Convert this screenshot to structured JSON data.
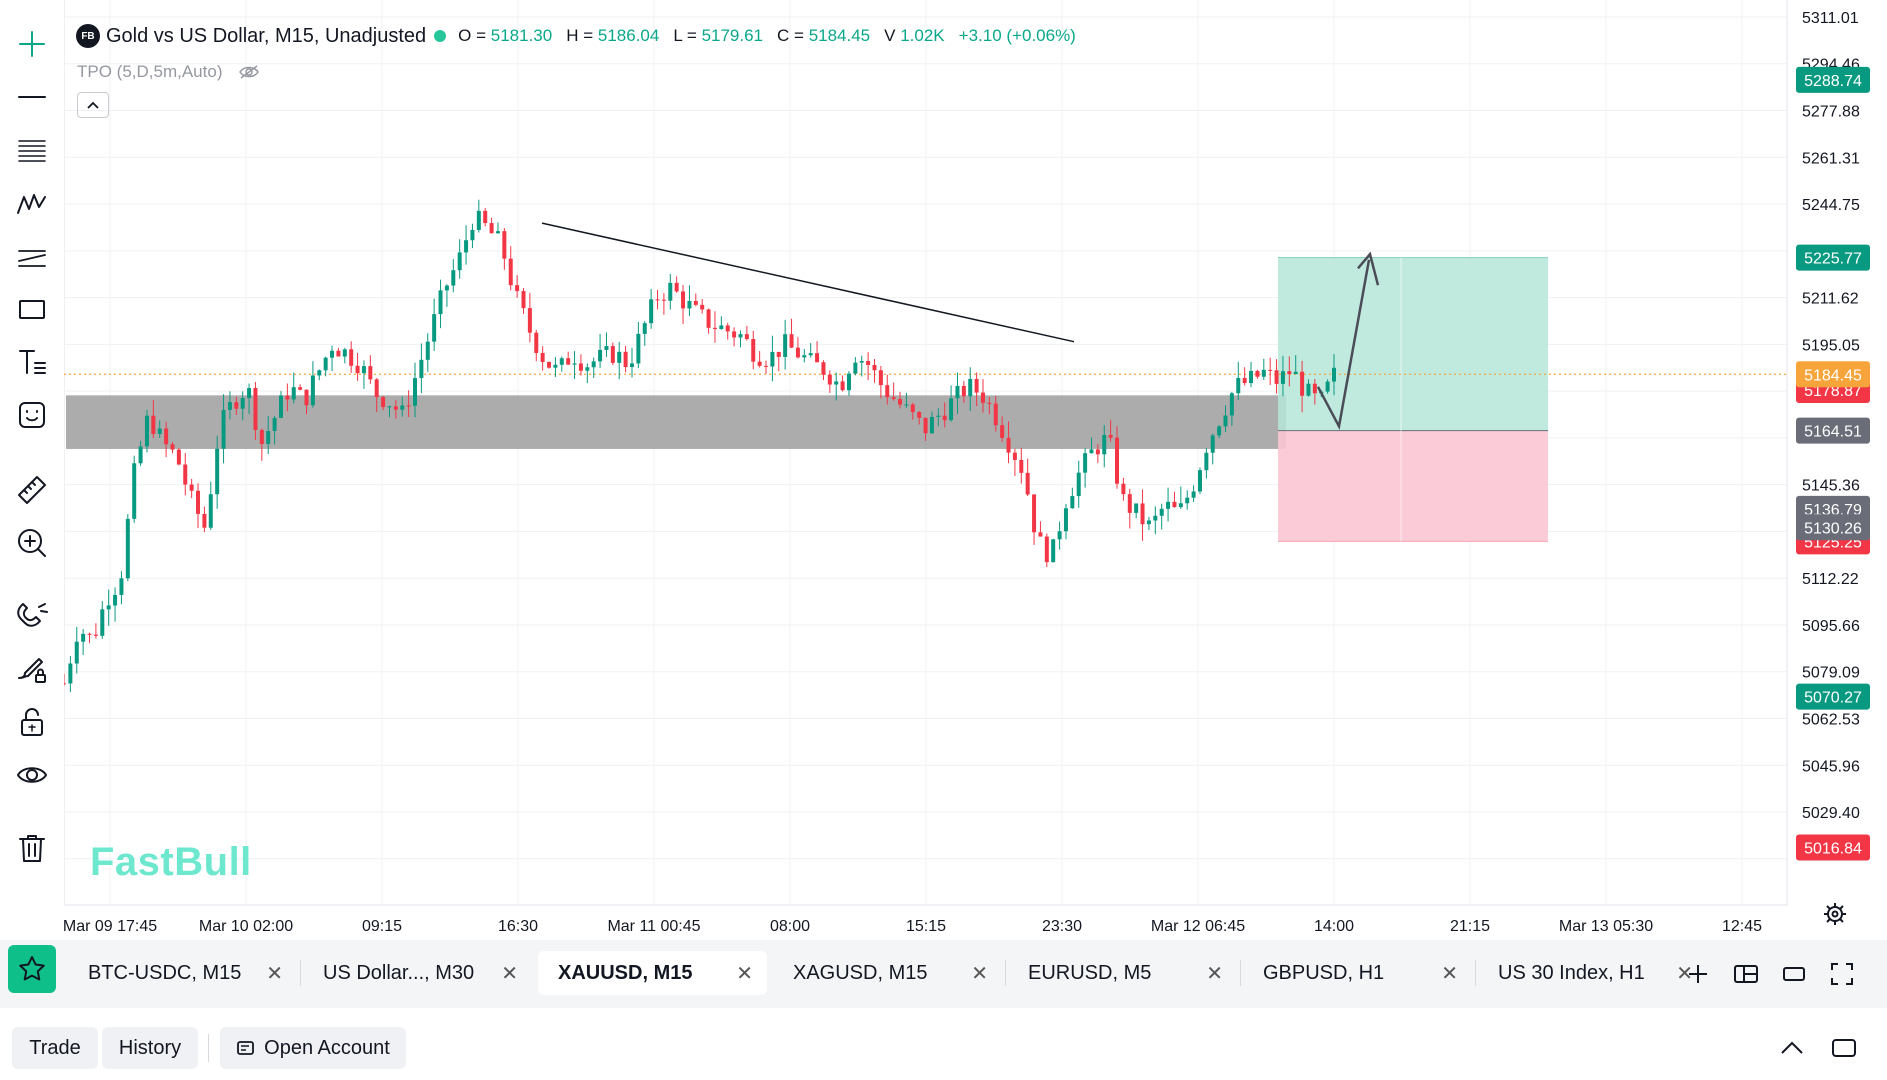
{
  "legend": {
    "logo_text": "FB",
    "title": "Gold vs US Dollar, M15, Unadjusted",
    "open_label": "O =",
    "open": "5181.30",
    "high_label": "H =",
    "high": "5186.04",
    "low_label": "L =",
    "low": "5179.61",
    "close_label": "C =",
    "close": "5184.45",
    "volume_label": "V",
    "volume": "1.02K",
    "change": "+3.10 (+0.06%)"
  },
  "indicator": {
    "label": "TPO (5,D,5m,Auto)"
  },
  "watermark": "FastBull",
  "toolbar": {
    "tools": [
      "crosshair-icon",
      "horizontal-line-icon",
      "fib-lines-icon",
      "pattern-icon",
      "channel-icon",
      "rectangle-icon",
      "text-icon",
      "emoji-icon",
      "ruler-icon",
      "zoom-in-icon",
      "magnet-icon",
      "brush-lock-icon",
      "lock-icon",
      "eye-icon",
      "trash-icon"
    ]
  },
  "price_axis": {
    "ticks": [
      "5311.01",
      "5294.46",
      "5277.88",
      "5261.31",
      "5244.75",
      "5211.62",
      "5195.05",
      "5145.36",
      "5112.22",
      "5095.66",
      "5079.09",
      "5062.53",
      "5045.96",
      "5029.40"
    ],
    "labels": [
      {
        "text": "5288.74",
        "color": "#089981"
      },
      {
        "text": "5225.77",
        "color": "#089981"
      },
      {
        "text": "5178.87",
        "color": "#f23645"
      },
      {
        "text": "5184.45",
        "color": "#f7a53b"
      },
      {
        "text": "5164.51",
        "color": "#6a6d78"
      },
      {
        "text": "5125.25",
        "color": "#f23645"
      },
      {
        "text": "5136.79",
        "color": "#6a6d78"
      },
      {
        "text": "5130.26",
        "color": "#6a6d78"
      },
      {
        "text": "5070.27",
        "color": "#089981"
      },
      {
        "text": "5016.84",
        "color": "#f23645"
      }
    ]
  },
  "time_axis": {
    "ticks": [
      "Mar 09 17:45",
      "Mar 10 02:00",
      "09:15",
      "16:30",
      "Mar 11 00:45",
      "08:00",
      "15:15",
      "23:30",
      "Mar 12 06:45",
      "14:00",
      "21:15",
      "Mar 13 05:30",
      "12:45"
    ]
  },
  "chart_data": {
    "type": "candlestick",
    "symbol": "XAUUSD",
    "timeframe": "M15",
    "ylim": [
      5005,
      5318
    ],
    "x_ticks": [
      "Mar 09 17:45",
      "Mar 10 02:00",
      "09:15",
      "16:30",
      "Mar 11 00:45",
      "08:00",
      "15:15",
      "23:30",
      "Mar 12 06:45",
      "14:00",
      "21:15",
      "Mar 13 05:30",
      "12:45"
    ],
    "close_path": [
      5075,
      5095,
      5090,
      5105,
      5112,
      5150,
      5170,
      5160,
      5155,
      5140,
      5130,
      5165,
      5175,
      5180,
      5160,
      5170,
      5180,
      5175,
      5185,
      5195,
      5192,
      5188,
      5178,
      5175,
      5170,
      5185,
      5200,
      5215,
      5225,
      5240,
      5236,
      5230,
      5212,
      5200,
      5190,
      5185,
      5192,
      5188,
      5190,
      5192,
      5188,
      5200,
      5212,
      5215,
      5210,
      5205,
      5202,
      5200,
      5198,
      5192,
      5190,
      5195,
      5192,
      5188,
      5186,
      5180,
      5192,
      5188,
      5180,
      5175,
      5170,
      5165,
      5170,
      5175,
      5180,
      5178,
      5170,
      5160,
      5150,
      5125,
      5120,
      5140,
      5150,
      5158,
      5162,
      5140,
      5135,
      5130,
      5138,
      5135,
      5145,
      5160,
      5170,
      5180,
      5182,
      5185,
      5182,
      5186,
      5178,
      5174,
      5184
    ],
    "current_price": 5184.45,
    "zone_range": [
      5158,
      5177
    ],
    "trendline": {
      "start": 5238,
      "end": 5196
    },
    "position": {
      "entry": 5164.51,
      "target": 5225.77,
      "stop": 5125.25
    },
    "grid": true
  },
  "tabs": [
    {
      "label": "BTC-USDC, M15",
      "active": false
    },
    {
      "label": "US Dollar..., M30",
      "active": false
    },
    {
      "label": "XAUUSD, M15",
      "active": true
    },
    {
      "label": "XAGUSD, M15",
      "active": false
    },
    {
      "label": "EURUSD, M5",
      "active": false
    },
    {
      "label": "GBPUSD, H1",
      "active": false
    },
    {
      "label": "US 30 Index, H1",
      "active": false
    }
  ],
  "tab_close": "✕",
  "bottom": {
    "trade": "Trade",
    "history": "History",
    "open_account": "Open Account"
  }
}
